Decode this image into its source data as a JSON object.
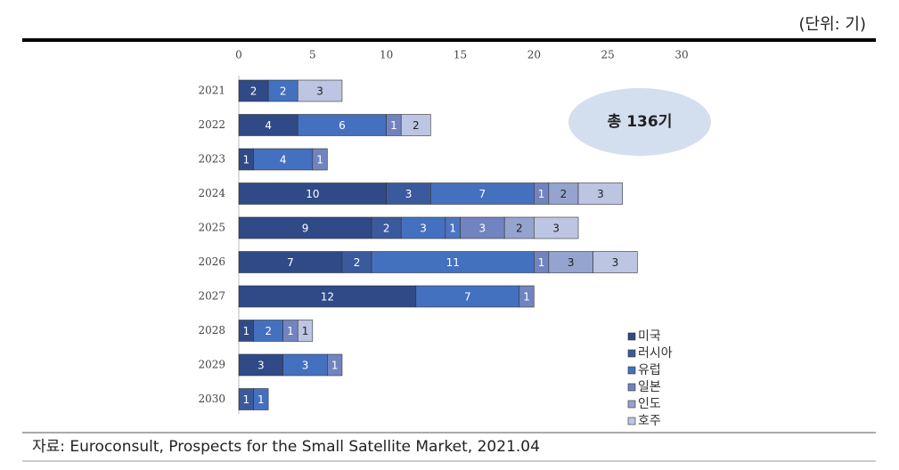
{
  "chart_data": {
    "type": "stacked-bar-horizontal",
    "unit_note": "(단위: 기)",
    "annotation": "총 136기",
    "source": "자료: Euroconsult, Prospects for the Small Satellite Market, 2021.04",
    "categories": [
      "2021",
      "2022",
      "2023",
      "2024",
      "2025",
      "2026",
      "2027",
      "2028",
      "2029",
      "2030"
    ],
    "xlim": [
      0,
      30
    ],
    "xticks": [
      0,
      5,
      10,
      15,
      20,
      25,
      30
    ],
    "series": [
      {
        "name": "미국",
        "color": "#2f4a87",
        "values": [
          2,
          4,
          1,
          10,
          9,
          7,
          12,
          1,
          3,
          0
        ]
      },
      {
        "name": "러시아",
        "color": "#3b5a9e",
        "values": [
          null,
          null,
          null,
          3,
          2,
          2,
          null,
          null,
          null,
          1
        ]
      },
      {
        "name": "유럽",
        "color": "#4470c0",
        "values": [
          2,
          6,
          4,
          7,
          3,
          11,
          7,
          2,
          3,
          1
        ]
      },
      {
        "color": "#4d74c2",
        "values": [
          null,
          null,
          null,
          null,
          1,
          null,
          null,
          null,
          null,
          null
        ]
      },
      {
        "name": "일본",
        "color": "#7184bf",
        "values": [
          null,
          1,
          1,
          1,
          3,
          1,
          1,
          1,
          1,
          null
        ]
      },
      {
        "name": "인도",
        "color": "#95a3cf",
        "values": [
          null,
          null,
          null,
          2,
          2,
          3,
          null,
          null,
          null,
          null
        ]
      },
      {
        "name": "호주",
        "color": "#bcc5e2",
        "values": [
          3,
          2,
          null,
          3,
          3,
          3,
          null,
          1,
          null,
          null
        ]
      }
    ]
  }
}
